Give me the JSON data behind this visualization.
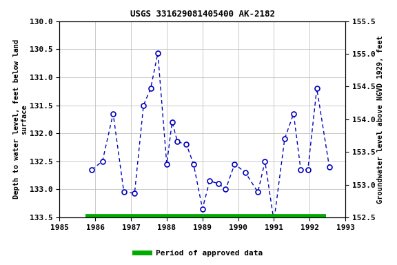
{
  "title": "USGS 331629081405400 AK-2182",
  "ylabel_left": "Depth to water level, feet below land\nsurface",
  "ylabel_right": "Groundwater level above NGVD 1929, feet",
  "xlim": [
    1985,
    1993
  ],
  "ylim_left": [
    133.5,
    130.0
  ],
  "ylim_right": [
    152.5,
    155.5
  ],
  "xticks": [
    1985,
    1986,
    1987,
    1988,
    1989,
    1990,
    1991,
    1992,
    1993
  ],
  "yticks_left": [
    130.0,
    130.5,
    131.0,
    131.5,
    132.0,
    132.5,
    133.0,
    133.5
  ],
  "yticks_right": [
    152.5,
    153.0,
    153.5,
    154.0,
    154.5,
    155.0,
    155.5
  ],
  "x_data": [
    1985.9,
    1986.2,
    1986.5,
    1986.8,
    1987.1,
    1987.35,
    1987.55,
    1987.75,
    1988.0,
    1988.15,
    1988.3,
    1988.55,
    1988.75,
    1989.0,
    1989.2,
    1989.45,
    1989.65,
    1989.9,
    1990.2,
    1990.55,
    1990.75,
    1991.0,
    1991.3,
    1991.55,
    1991.75,
    1991.95,
    1992.2,
    1992.55
  ],
  "y_data": [
    132.65,
    132.5,
    131.65,
    133.05,
    133.07,
    131.5,
    131.2,
    130.57,
    132.55,
    131.8,
    132.15,
    132.2,
    132.55,
    133.35,
    132.85,
    132.9,
    133.0,
    132.55,
    132.7,
    133.05,
    132.5,
    133.57,
    132.1,
    131.65,
    132.65,
    132.65,
    131.2,
    132.6
  ],
  "line_color": "#0000bb",
  "marker_face": "#ffffff",
  "background_color": "#ffffff",
  "grid_color": "#c0c0c0",
  "bar_color": "#00aa00",
  "bar_xstart": 1985.72,
  "bar_xend": 1992.45,
  "legend_label": "Period of approved data"
}
